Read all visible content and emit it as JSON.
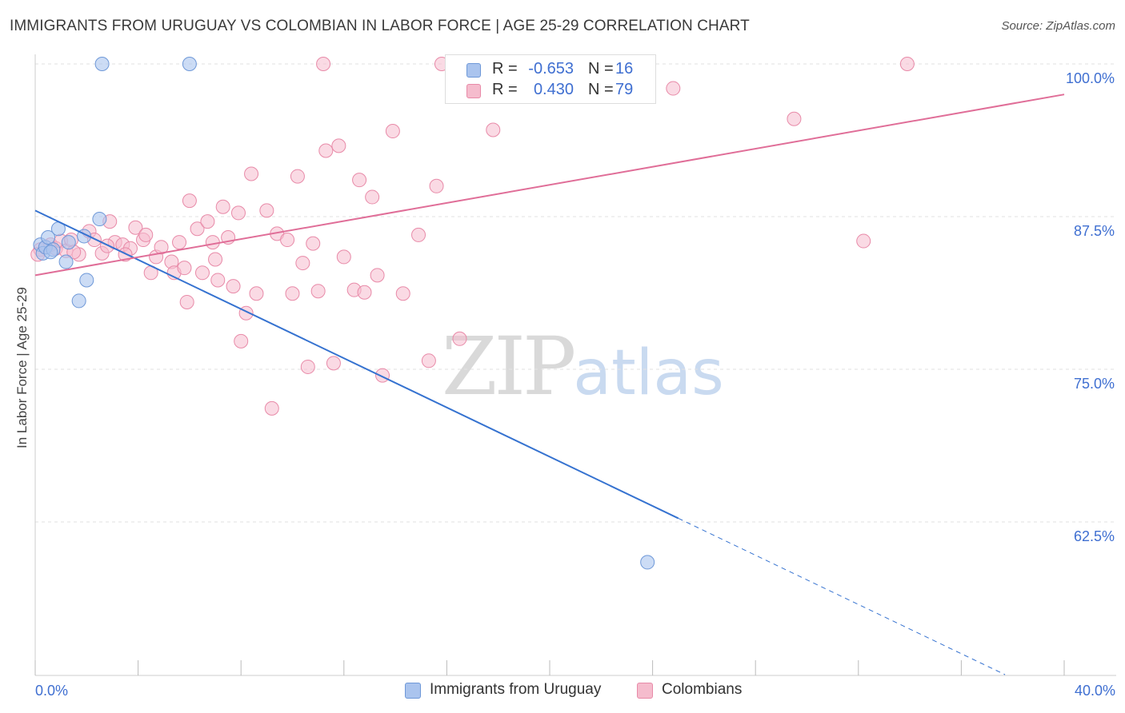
{
  "header": {
    "title": "IMMIGRANTS FROM URUGUAY VS COLOMBIAN IN LABOR FORCE | AGE 25-29 CORRELATION CHART",
    "source": "Source: ZipAtlas.com"
  },
  "watermark": {
    "zip": "ZIP",
    "atlas": "atlas"
  },
  "legend": {
    "r_label": "R =",
    "n_label": "N =",
    "items": [
      {
        "r": "-0.653",
        "n": "16"
      },
      {
        "r": "0.430",
        "n": "79"
      }
    ]
  },
  "chart_data": {
    "type": "scatter",
    "title": "IMMIGRANTS FROM URUGUAY VS COLOMBIAN IN LABOR FORCE | AGE 25-29 CORRELATION CHART",
    "xlabel": "",
    "ylabel": "In Labor Force | Age 25-29",
    "xlim": [
      0,
      40
    ],
    "ylim": [
      52.5,
      102.5
    ],
    "x_tick_labels": [
      "0.0%",
      "40.0%"
    ],
    "y_ticks": [
      62.5,
      75.0,
      87.5,
      100.0
    ],
    "y_tick_labels": [
      "62.5%",
      "75.0%",
      "87.5%",
      "100.0%"
    ],
    "grid": true,
    "legend_position": "bottom",
    "colors": {
      "uruguay_fill": "#aac4ee",
      "uruguay_stroke": "#6e98d8",
      "uruguay_line": "#3572d0",
      "colombian_fill": "#f5bccd",
      "colombian_stroke": "#e88aa8",
      "colombian_line": "#e06e98",
      "tick_label": "#3f6fd1"
    },
    "series": [
      {
        "name": "Immigrants from Uruguay",
        "r": -0.653,
        "n": 16,
        "points": [
          [
            0.2,
            85.2
          ],
          [
            0.3,
            84.5
          ],
          [
            0.4,
            85.0
          ],
          [
            0.5,
            85.8
          ],
          [
            0.7,
            84.8
          ],
          [
            0.9,
            86.5
          ],
          [
            1.2,
            83.8
          ],
          [
            1.3,
            85.4
          ],
          [
            1.7,
            80.6
          ],
          [
            1.9,
            85.9
          ],
          [
            2.0,
            82.3
          ],
          [
            2.5,
            87.3
          ],
          [
            2.6,
            100.0
          ],
          [
            6.0,
            100.0
          ],
          [
            23.8,
            59.2
          ],
          [
            0.6,
            84.6
          ]
        ],
        "trend": {
          "x0": 0,
          "y0": 88.0,
          "x1": 25.0,
          "y1": 62.8,
          "dashed_to_x": 37.7,
          "dashed_to_y": 50.0
        }
      },
      {
        "name": "Colombians",
        "r": 0.43,
        "n": 79,
        "points": [
          [
            0.2,
            84.8
          ],
          [
            0.4,
            85.0
          ],
          [
            0.6,
            85.2
          ],
          [
            0.8,
            84.9
          ],
          [
            1.0,
            85.5
          ],
          [
            1.2,
            84.7
          ],
          [
            1.4,
            85.6
          ],
          [
            1.7,
            84.4
          ],
          [
            2.1,
            86.3
          ],
          [
            2.3,
            85.6
          ],
          [
            2.6,
            84.5
          ],
          [
            2.9,
            87.1
          ],
          [
            3.1,
            85.4
          ],
          [
            3.4,
            85.2
          ],
          [
            3.7,
            84.9
          ],
          [
            3.9,
            86.6
          ],
          [
            4.2,
            85.6
          ],
          [
            4.5,
            82.9
          ],
          [
            4.7,
            84.2
          ],
          [
            4.9,
            85.0
          ],
          [
            5.3,
            83.8
          ],
          [
            5.4,
            82.9
          ],
          [
            5.6,
            85.4
          ],
          [
            5.8,
            83.3
          ],
          [
            5.9,
            80.5
          ],
          [
            6.0,
            88.8
          ],
          [
            6.3,
            86.5
          ],
          [
            6.5,
            82.9
          ],
          [
            6.7,
            87.1
          ],
          [
            6.9,
            85.4
          ],
          [
            7.1,
            82.3
          ],
          [
            7.3,
            88.3
          ],
          [
            7.5,
            85.8
          ],
          [
            7.7,
            81.8
          ],
          [
            7.9,
            87.8
          ],
          [
            8.0,
            77.3
          ],
          [
            8.2,
            79.6
          ],
          [
            8.4,
            91.0
          ],
          [
            8.6,
            81.2
          ],
          [
            9.0,
            88.0
          ],
          [
            9.2,
            71.8
          ],
          [
            9.4,
            86.1
          ],
          [
            9.8,
            85.6
          ],
          [
            10.0,
            81.2
          ],
          [
            10.2,
            90.8
          ],
          [
            10.4,
            83.7
          ],
          [
            10.6,
            75.2
          ],
          [
            10.8,
            85.3
          ],
          [
            11.0,
            81.4
          ],
          [
            11.2,
            100.0
          ],
          [
            11.3,
            92.9
          ],
          [
            11.6,
            75.5
          ],
          [
            11.8,
            93.3
          ],
          [
            12.4,
            81.5
          ],
          [
            12.6,
            90.5
          ],
          [
            12.8,
            81.3
          ],
          [
            13.1,
            89.1
          ],
          [
            13.3,
            82.7
          ],
          [
            13.5,
            74.5
          ],
          [
            13.9,
            94.5
          ],
          [
            14.3,
            81.2
          ],
          [
            14.9,
            86.0
          ],
          [
            15.3,
            75.7
          ],
          [
            15.6,
            90.0
          ],
          [
            15.8,
            100.0
          ],
          [
            16.5,
            77.5
          ],
          [
            17.8,
            94.6
          ],
          [
            22.7,
            100.0
          ],
          [
            24.8,
            98.0
          ],
          [
            29.5,
            95.5
          ],
          [
            32.2,
            85.5
          ],
          [
            33.9,
            100.0
          ],
          [
            1.5,
            84.6
          ],
          [
            2.8,
            85.1
          ],
          [
            4.3,
            86.0
          ],
          [
            7.0,
            84.0
          ],
          [
            12.0,
            84.2
          ],
          [
            3.5,
            84.4
          ],
          [
            0.1,
            84.4
          ]
        ],
        "trend": {
          "x0": 0,
          "y0": 82.7,
          "x1": 40.0,
          "y1": 97.5
        }
      }
    ]
  }
}
